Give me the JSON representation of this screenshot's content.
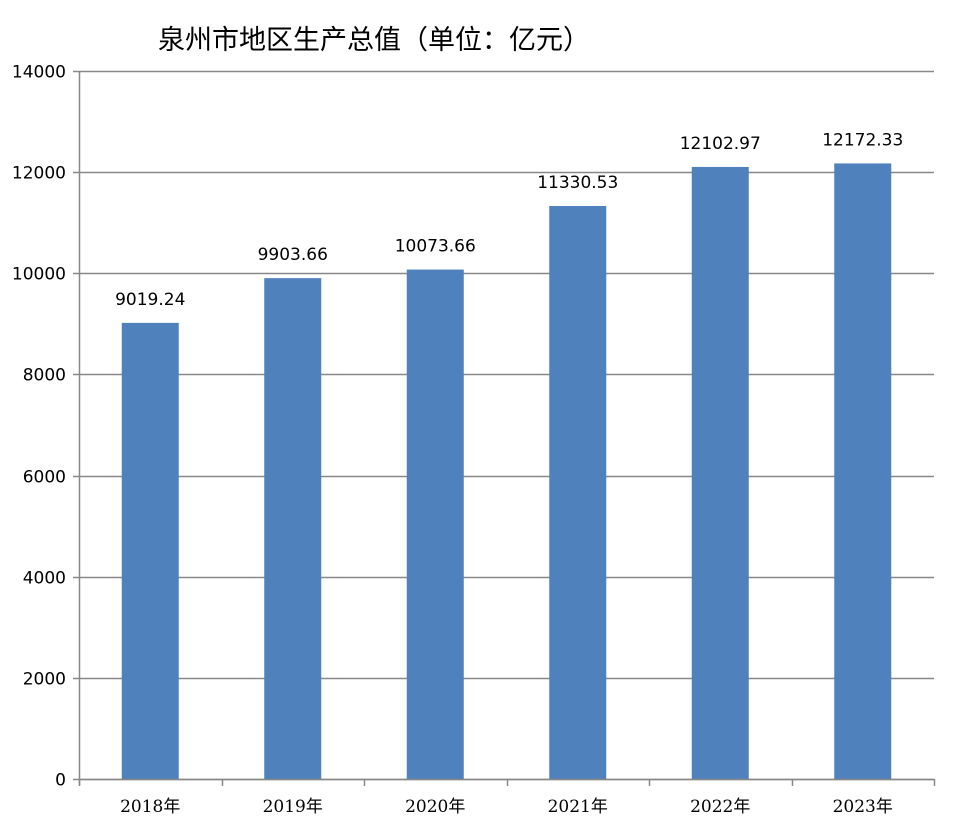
{
  "chart_data": {
    "type": "bar",
    "title": "泉州市地区生产总值（单位：亿元）",
    "categories": [
      "2018年",
      "2019年",
      "2020年",
      "2021年",
      "2022年",
      "2023年"
    ],
    "values": [
      9019.24,
      9903.66,
      10073.66,
      11330.53,
      12102.97,
      12172.33
    ],
    "data_labels": [
      "9019.24",
      "9903.66",
      "10073.66",
      "11330.53",
      "12102.97",
      "12172.33"
    ],
    "ylim": [
      0,
      14000
    ],
    "yticks": [
      0,
      2000,
      4000,
      6000,
      8000,
      10000,
      12000,
      14000
    ],
    "ytick_labels": [
      "0",
      "2000",
      "4000",
      "6000",
      "8000",
      "10000",
      "12000",
      "14000"
    ],
    "xlabel": "",
    "ylabel": "",
    "grid": "horizontal",
    "legend": "none",
    "bar_color": "#4f81bd",
    "grid_color": "#888888"
  }
}
